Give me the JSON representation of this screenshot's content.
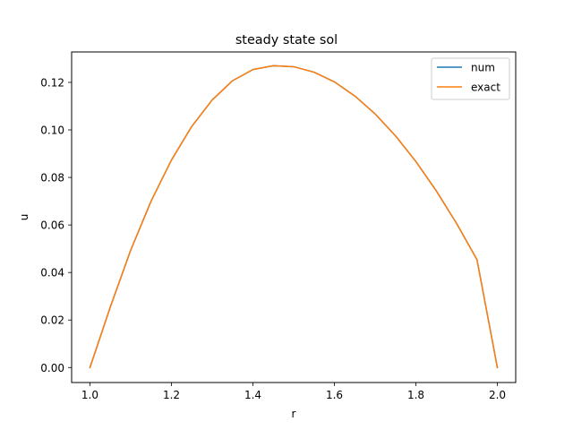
{
  "chart_data": {
    "type": "line",
    "title": "steady state sol",
    "xlabel": "r",
    "ylabel": "u",
    "xlim": [
      0.955,
      2.045
    ],
    "ylim": [
      -0.0063,
      0.1328
    ],
    "xticks": [
      1.0,
      1.2,
      1.4,
      1.6,
      1.8,
      2.0
    ],
    "xtick_labels": [
      "1.0",
      "1.2",
      "1.4",
      "1.6",
      "1.8",
      "2.0"
    ],
    "yticks": [
      0.0,
      0.02,
      0.04,
      0.06,
      0.08,
      0.1,
      0.12
    ],
    "ytick_labels": [
      "0.00",
      "0.02",
      "0.04",
      "0.06",
      "0.08",
      "0.10",
      "0.12"
    ],
    "grid": false,
    "legend_position": "top-right",
    "x": [
      1.0,
      1.05,
      1.1,
      1.15,
      1.2,
      1.25,
      1.3,
      1.35,
      1.4,
      1.45,
      1.5,
      1.55,
      1.6,
      1.65,
      1.7,
      1.75,
      1.8,
      1.85,
      1.9,
      1.95,
      2.0
    ],
    "series": [
      {
        "name": "num",
        "color": "#1f77b4",
        "values": [
          0.0,
          0.0255,
          0.0494,
          0.07,
          0.0873,
          0.1015,
          0.1126,
          0.1207,
          0.1254,
          0.127,
          0.1266,
          0.1243,
          0.1202,
          0.1143,
          0.1067,
          0.0975,
          0.0867,
          0.0744,
          0.0606,
          0.0454,
          0.0
        ]
      },
      {
        "name": "exact",
        "color": "#ff7f0e",
        "values": [
          0.0,
          0.0255,
          0.0494,
          0.07,
          0.0873,
          0.1015,
          0.1126,
          0.1207,
          0.1254,
          0.127,
          0.1266,
          0.1243,
          0.1202,
          0.1143,
          0.1067,
          0.0975,
          0.0867,
          0.0744,
          0.0606,
          0.0454,
          0.0
        ]
      }
    ]
  }
}
